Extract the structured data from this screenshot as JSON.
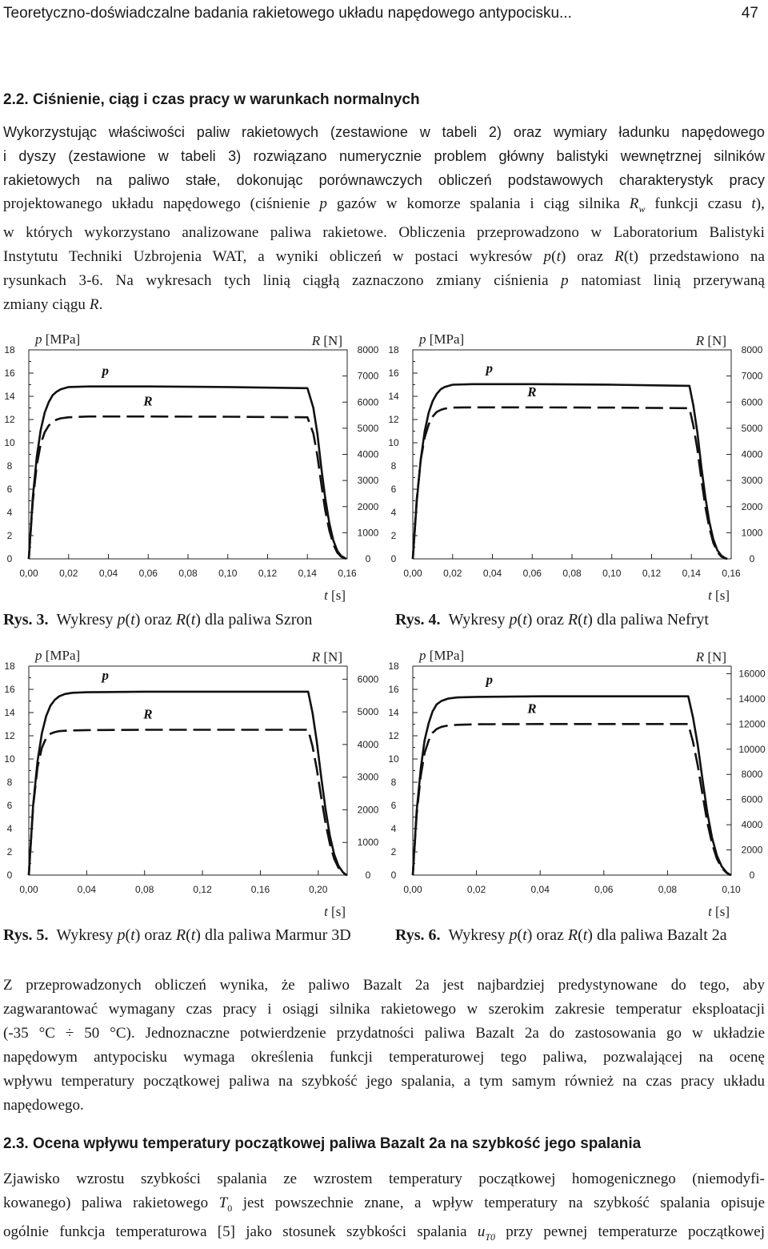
{
  "header": {
    "title": "Teoretyczno-doświadczalne badania rakietowego układu napędowego antypocisku...",
    "page_number": "47"
  },
  "section_22": {
    "heading": "2.2. Ciśnienie, ciąg i czas pracy w warunkach normalnych"
  },
  "intro_paragraph": {
    "l1": "Wykorzystując właściwości paliw rakietowych (zestawione w tabeli 2) oraz wymiary ładunku napędowego",
    "l2": "i dyszy (zestawione w tabeli 3) rozwiązano numerycznie problem główny balistyki wewnętrznej silników",
    "l3": "rakietowych na paliwo stałe, dokonując porównawczych obliczeń podstawowych charakterystyk pracy",
    "l4a": "projektowanego układu napędowego (ciśnienie ",
    "l4b": "p",
    "l4c": " gazów w komorze spalania i ciąg silnika ",
    "l4d": "R",
    "l4e": "w",
    "l4f": " funkcji czasu ",
    "l4g": "t",
    "l4h": "),",
    "l5": "w których wykorzystano analizowane paliwa rakietowe. Obliczenia przeprowadzono w Laboratorium Balistyki",
    "l6a": "Instytutu Techniki Uzbrojenia WAT, a wyniki obliczeń w postaci wykresów ",
    "l6b": "p",
    "l6c": "(",
    "l6d": "t",
    "l6e": ") oraz ",
    "l6f": "R",
    "l6g": "(t) przedstawiono na",
    "l7": "rysunkach 3-6. Na wykresach tych linią ciągłą zaznaczono zmiany ciśnienia ",
    "l7b": "p",
    "l7c": " natomiast linią przerywaną",
    "l8": "zmiany ciągu ",
    "l8b": "R",
    "l8c": "."
  },
  "charts_text": {
    "p_label": "p",
    "p_unit": "[MPa]",
    "r_label": "R",
    "r_unit": "[N]",
    "t_label": "t",
    "t_unit": "[s]",
    "curve_p": "p",
    "curve_r": "R"
  },
  "chart_data": [
    {
      "type": "line",
      "figure": "Rys. 3.",
      "caption_pre": "Wykresy ",
      "caption_fuel": "dla paliwa Szron",
      "x_ticks": [
        "0,00",
        "0,02",
        "0,04",
        "0,06",
        "0,08",
        "0,10",
        "0,12",
        "0,14",
        "0,16"
      ],
      "xlim": [
        0,
        0.16
      ],
      "y_left_ticks": [
        "0",
        "2",
        "4",
        "6",
        "8",
        "10",
        "12",
        "14",
        "16",
        "18"
      ],
      "ylim_left": [
        0,
        18
      ],
      "y_right_ticks": [
        "0",
        "1000",
        "2000",
        "3000",
        "4000",
        "5000",
        "6000",
        "7000",
        "8000"
      ],
      "ylim_right": [
        0,
        8000
      ],
      "series": [
        {
          "name": "p",
          "style": "solid",
          "axis": "left",
          "x": [
            0,
            0.002,
            0.004,
            0.006,
            0.008,
            0.01,
            0.012,
            0.014,
            0.016,
            0.02,
            0.03,
            0.06,
            0.1,
            0.14,
            0.143,
            0.145,
            0.147,
            0.149,
            0.151,
            0.153,
            0.155,
            0.157,
            0.159,
            0.1595
          ],
          "y": [
            0,
            5.3,
            8.8,
            11.1,
            12.6,
            13.5,
            14.1,
            14.4,
            14.6,
            14.8,
            14.85,
            14.85,
            14.8,
            14.7,
            13.0,
            10.8,
            7.8,
            5.2,
            3.1,
            1.6,
            0.7,
            0.25,
            0.05,
            0
          ]
        },
        {
          "name": "R",
          "style": "dashed",
          "axis": "right",
          "x": [
            0,
            0.002,
            0.004,
            0.006,
            0.008,
            0.01,
            0.012,
            0.014,
            0.016,
            0.02,
            0.03,
            0.06,
            0.1,
            0.14,
            0.143,
            0.145,
            0.147,
            0.149,
            0.151,
            0.153,
            0.155,
            0.157,
            0.159,
            0.1595
          ],
          "y": [
            0,
            2200,
            3600,
            4400,
            4850,
            5100,
            5250,
            5330,
            5380,
            5420,
            5450,
            5450,
            5440,
            5420,
            4800,
            3950,
            2850,
            1850,
            1100,
            560,
            240,
            80,
            15,
            0
          ]
        }
      ]
    },
    {
      "type": "line",
      "figure": "Rys. 4.",
      "caption_pre": "Wykresy ",
      "caption_fuel": "dla paliwa Nefryt",
      "x_ticks": [
        "0,00",
        "0,02",
        "0,04",
        "0,06",
        "0,08",
        "0,10",
        "0,12",
        "0,14",
        "0,16"
      ],
      "xlim": [
        0,
        0.16
      ],
      "y_left_ticks": [
        "0",
        "2",
        "4",
        "6",
        "8",
        "10",
        "12",
        "14",
        "16",
        "18"
      ],
      "ylim_left": [
        0,
        18
      ],
      "y_right_ticks": [
        "0",
        "1000",
        "2000",
        "3000",
        "4000",
        "5000",
        "6000",
        "7000",
        "8000"
      ],
      "ylim_right": [
        0,
        8000
      ],
      "series": [
        {
          "name": "p",
          "style": "solid",
          "axis": "left",
          "x": [
            0,
            0.002,
            0.004,
            0.006,
            0.008,
            0.01,
            0.012,
            0.014,
            0.016,
            0.02,
            0.03,
            0.06,
            0.1,
            0.139,
            0.141,
            0.143,
            0.145,
            0.147,
            0.149,
            0.151,
            0.153,
            0.155,
            0.157,
            0.158
          ],
          "y": [
            0,
            5.0,
            8.6,
            11.0,
            12.6,
            13.6,
            14.2,
            14.6,
            14.8,
            15.0,
            15.05,
            15.05,
            15.0,
            14.9,
            13.2,
            10.9,
            7.9,
            5.3,
            3.2,
            1.7,
            0.75,
            0.28,
            0.06,
            0
          ]
        },
        {
          "name": "R",
          "style": "dashed",
          "axis": "right",
          "x": [
            0,
            0.002,
            0.004,
            0.006,
            0.008,
            0.01,
            0.012,
            0.014,
            0.016,
            0.02,
            0.03,
            0.06,
            0.1,
            0.139,
            0.141,
            0.143,
            0.145,
            0.147,
            0.149,
            0.151,
            0.153,
            0.155,
            0.157,
            0.158
          ],
          "y": [
            0,
            2300,
            3800,
            4650,
            5150,
            5450,
            5620,
            5700,
            5750,
            5790,
            5800,
            5800,
            5790,
            5770,
            5100,
            4200,
            3050,
            2000,
            1200,
            620,
            270,
            90,
            18,
            0
          ]
        }
      ]
    },
    {
      "type": "line",
      "figure": "Rys. 5.",
      "caption_pre": "Wykresy ",
      "caption_fuel": "dla paliwa Marmur 3D",
      "x_ticks": [
        "0,00",
        "0,04",
        "0,08",
        "0,12",
        "0,16",
        "0,20"
      ],
      "xlim": [
        0,
        0.22
      ],
      "y_left_ticks": [
        "0",
        "2",
        "4",
        "6",
        "8",
        "10",
        "12",
        "14",
        "16",
        "18"
      ],
      "ylim_left": [
        0,
        18
      ],
      "y_right_ticks": [
        "0",
        "1000",
        "2000",
        "3000",
        "4000",
        "5000",
        "6000"
      ],
      "ylim_right": [
        0,
        6400
      ],
      "series": [
        {
          "name": "p",
          "style": "solid",
          "axis": "left",
          "x": [
            0,
            0.003,
            0.006,
            0.009,
            0.012,
            0.015,
            0.018,
            0.021,
            0.025,
            0.03,
            0.04,
            0.08,
            0.15,
            0.193,
            0.196,
            0.199,
            0.202,
            0.205,
            0.208,
            0.211,
            0.214,
            0.217,
            0.219,
            0.22
          ],
          "y": [
            0,
            6.0,
            9.8,
            12.2,
            13.7,
            14.6,
            15.1,
            15.4,
            15.6,
            15.7,
            15.75,
            15.8,
            15.8,
            15.8,
            14.0,
            11.5,
            8.5,
            5.7,
            3.4,
            1.8,
            0.8,
            0.25,
            0.05,
            0
          ]
        },
        {
          "name": "R",
          "style": "dashed",
          "axis": "right",
          "x": [
            0,
            0.003,
            0.006,
            0.009,
            0.012,
            0.015,
            0.018,
            0.021,
            0.025,
            0.03,
            0.04,
            0.08,
            0.15,
            0.193,
            0.196,
            0.199,
            0.202,
            0.205,
            0.208,
            0.211,
            0.214,
            0.217,
            0.219,
            0.22
          ],
          "y": [
            0,
            2100,
            3300,
            3900,
            4200,
            4330,
            4380,
            4410,
            4420,
            4430,
            4440,
            4450,
            4450,
            4450,
            3950,
            3250,
            2400,
            1600,
            960,
            500,
            220,
            70,
            15,
            0
          ]
        }
      ]
    },
    {
      "type": "line",
      "figure": "Rys. 6.",
      "caption_pre": "Wykresy ",
      "caption_fuel": "dla paliwa Bazalt 2a",
      "x_ticks": [
        "0,00",
        "0,02",
        "0,04",
        "0,06",
        "0,08",
        "0,10"
      ],
      "xlim": [
        0,
        0.1
      ],
      "y_left_ticks": [
        "0",
        "2",
        "4",
        "6",
        "8",
        "10",
        "12",
        "14",
        "16",
        "18"
      ],
      "ylim_left": [
        0,
        18
      ],
      "y_right_ticks": [
        "0",
        "2000",
        "4000",
        "6000",
        "8000",
        "10000",
        "12000",
        "14000",
        "16000"
      ],
      "ylim_right": [
        0,
        16600
      ],
      "series": [
        {
          "name": "p",
          "style": "solid",
          "axis": "left",
          "x": [
            0,
            0.0012,
            0.0025,
            0.0037,
            0.005,
            0.0062,
            0.0075,
            0.009,
            0.011,
            0.014,
            0.02,
            0.04,
            0.07,
            0.0865,
            0.088,
            0.0895,
            0.091,
            0.0925,
            0.094,
            0.0955,
            0.097,
            0.0985,
            0.0995,
            0.1
          ],
          "y": [
            0,
            5.5,
            9.2,
            11.6,
            13.1,
            14.1,
            14.7,
            15.0,
            15.2,
            15.3,
            15.35,
            15.4,
            15.4,
            15.4,
            13.6,
            11.2,
            8.2,
            5.4,
            3.2,
            1.7,
            0.75,
            0.25,
            0.05,
            0
          ]
        },
        {
          "name": "R",
          "style": "dashed",
          "axis": "right",
          "x": [
            0,
            0.0012,
            0.0025,
            0.0037,
            0.005,
            0.0062,
            0.0075,
            0.009,
            0.011,
            0.014,
            0.02,
            0.04,
            0.07,
            0.0865,
            0.088,
            0.0895,
            0.091,
            0.0925,
            0.094,
            0.0955,
            0.097,
            0.0985,
            0.0995,
            0.1
          ],
          "y": [
            0,
            4800,
            7900,
            9700,
            10700,
            11300,
            11600,
            11780,
            11880,
            11940,
            11980,
            12000,
            12000,
            12000,
            10600,
            8700,
            6400,
            4200,
            2500,
            1300,
            580,
            190,
            40,
            0
          ]
        }
      ]
    }
  ],
  "conclusion_paragraph": {
    "l1": "Z przeprowadzonych obliczeń wynika, że paliwo Bazalt 2a jest najbardziej predystynowane do tego, aby",
    "l2": "zagwarantować wymagany czas pracy i osiągi silnika rakietowego w szerokim zakresie temperatur eksploatacji",
    "l3": "(-35 °C ÷ 50 °C). Jednoznaczne potwierdzenie przydatności paliwa Bazalt 2a do zastosowania go w układzie",
    "l4": "napędowym antypocisku wymaga określenia funkcji temperaturowej tego paliwa, pozwalającej na ocenę",
    "l5": "wpływu temperatury początkowej paliwa na szybkość jego spalania, a tym samym również na czas pracy układu",
    "l6": "napędowego."
  },
  "section_23": {
    "heading": "2.3. Ocena wpływu temperatury początkowej paliwa Bazalt 2a na szybkość jego spalania"
  },
  "final_paragraph": {
    "l1": "Zjawisko wzrostu szybkości spalania ze wzrostem temperatury początkowej homogenicznego (niemodyfi-",
    "l2a": "kowanego) paliwa rakietowego ",
    "l2b": "T",
    "l2c": "0",
    "l2d": " jest powszechnie znane, a wpływ temperatury na szybkość spalania opisuje",
    "l3a": "ogólnie funkcja temperaturowa [5] jako stosunek szybkości spalania ",
    "l3b": "u",
    "l3c": "T0",
    "l3d": " przy pewnej temperaturze początkowej"
  }
}
